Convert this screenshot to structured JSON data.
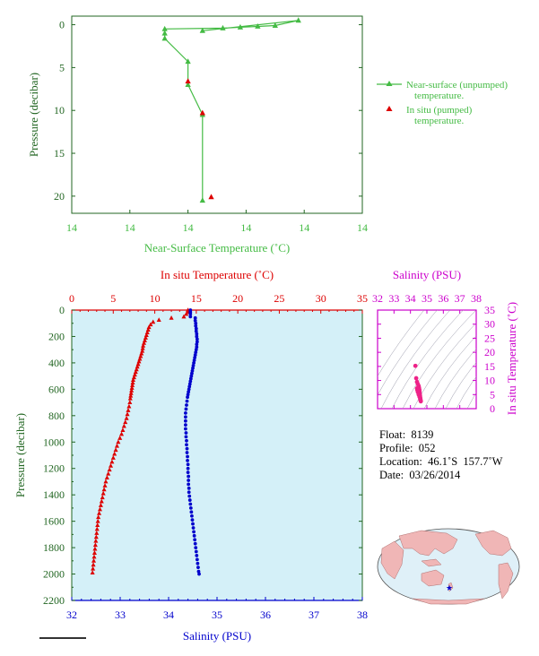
{
  "colors": {
    "green": "#44bb44",
    "red": "#dd0000",
    "blue": "#0000cc",
    "magenta": "#cc00cc",
    "plot_bg": "#d4f0f8",
    "axis_green": "#226622"
  },
  "top_chart": {
    "xlabel": "Near-Surface Temperature (˚C)",
    "ylabel": "Pressure (decibar)",
    "x_tick_labels": [
      "14",
      "14",
      "14",
      "14",
      "14",
      "14"
    ],
    "y_tick_labels": [
      "0",
      "5",
      "10",
      "15",
      "20"
    ],
    "legend": {
      "series1_line1": "Near-surface (unpumped)",
      "series1_line2": "temperature.",
      "series2_line1": "In situ (pumped)",
      "series2_line2": "temperature."
    }
  },
  "main_chart": {
    "top_axis_label": "In situ Temperature (˚C)",
    "bottom_axis_label": "Salinity (PSU)",
    "ylabel": "Pressure (decibar)",
    "top_tick_labels": [
      "0",
      "5",
      "10",
      "15",
      "20",
      "25",
      "30",
      "35"
    ],
    "bottom_tick_labels": [
      "32",
      "33",
      "34",
      "35",
      "36",
      "37",
      "38"
    ],
    "y_tick_labels": [
      "0",
      "200",
      "400",
      "600",
      "800",
      "1000",
      "1200",
      "1400",
      "1600",
      "1800",
      "2000",
      "2200"
    ]
  },
  "ts_chart": {
    "title": "Salinity (PSU)",
    "right_label": "In situ Temperature (˚C)",
    "x_tick_labels": [
      "32",
      "33",
      "34",
      "35",
      "36",
      "37",
      "38"
    ],
    "y_tick_labels": [
      "0",
      "5",
      "10",
      "15",
      "20",
      "25",
      "30",
      "35"
    ]
  },
  "info": {
    "float_label": "Float:",
    "float_value": "8139",
    "profile_label": "Profile:",
    "profile_value": "052",
    "location_label": "Location:",
    "location_value": "46.1˚S  157.7˚W",
    "date_label": "Date:",
    "date_value": "03/26/2014"
  },
  "chart_data": [
    {
      "type": "line",
      "title": "",
      "xlabel": "Near-Surface Temperature (˚C)",
      "ylabel": "Pressure (decibar)",
      "ylim": [
        22,
        -1
      ],
      "series": [
        {
          "name": "Near-surface (unpumped) temperature.",
          "points": [
            [
              13.65,
              0.7
            ],
            [
              13.98,
              -0.5
            ],
            [
              13.9,
              0.1
            ],
            [
              13.84,
              0.2
            ],
            [
              13.78,
              0.3
            ],
            [
              13.72,
              0.4
            ],
            [
              13.52,
              0.5
            ],
            [
              13.52,
              1.0
            ],
            [
              13.52,
              1.6
            ],
            [
              13.6,
              4.3
            ],
            [
              13.6,
              7.0
            ],
            [
              13.65,
              10.5
            ],
            [
              13.65,
              20.5
            ]
          ]
        },
        {
          "name": "In situ (pumped) temperature.",
          "points": [
            [
              13.6,
              6.6
            ],
            [
              13.65,
              10.3
            ],
            [
              13.68,
              20.1
            ]
          ]
        }
      ]
    },
    {
      "type": "scatter",
      "series": [
        {
          "name": "In situ Temperature",
          "unit": "˚C",
          "points": [
            [
              14.0,
              0
            ],
            [
              14.0,
              15
            ],
            [
              13.8,
              30
            ],
            [
              13.5,
              50
            ],
            [
              12.0,
              60
            ],
            [
              10.5,
              75
            ],
            [
              9.8,
              90
            ],
            [
              9.5,
              110
            ],
            [
              9.3,
              130
            ],
            [
              9.2,
              150
            ],
            [
              9.1,
              170
            ],
            [
              9.0,
              190
            ],
            [
              8.9,
              210
            ],
            [
              8.8,
              230
            ],
            [
              8.7,
              250
            ],
            [
              8.6,
              270
            ],
            [
              8.55,
              290
            ],
            [
              8.5,
              310
            ],
            [
              8.4,
              330
            ],
            [
              8.3,
              350
            ],
            [
              8.2,
              370
            ],
            [
              8.1,
              390
            ],
            [
              8.0,
              410
            ],
            [
              7.9,
              430
            ],
            [
              7.8,
              450
            ],
            [
              7.7,
              470
            ],
            [
              7.6,
              490
            ],
            [
              7.5,
              510
            ],
            [
              7.4,
              530
            ],
            [
              7.35,
              550
            ],
            [
              7.3,
              570
            ],
            [
              7.25,
              590
            ],
            [
              7.2,
              610
            ],
            [
              7.15,
              630
            ],
            [
              7.1,
              650
            ],
            [
              7.05,
              670
            ],
            [
              7.0,
              700
            ],
            [
              6.9,
              730
            ],
            [
              6.8,
              760
            ],
            [
              6.7,
              790
            ],
            [
              6.6,
              820
            ],
            [
              6.45,
              850
            ],
            [
              6.3,
              880
            ],
            [
              6.15,
              910
            ],
            [
              6.0,
              940
            ],
            [
              5.8,
              970
            ],
            [
              5.6,
              1000
            ],
            [
              5.45,
              1030
            ],
            [
              5.3,
              1060
            ],
            [
              5.15,
              1090
            ],
            [
              5.0,
              1120
            ],
            [
              4.85,
              1150
            ],
            [
              4.7,
              1180
            ],
            [
              4.55,
              1210
            ],
            [
              4.4,
              1240
            ],
            [
              4.25,
              1270
            ],
            [
              4.1,
              1300
            ],
            [
              4.0,
              1330
            ],
            [
              3.9,
              1360
            ],
            [
              3.8,
              1390
            ],
            [
              3.7,
              1420
            ],
            [
              3.6,
              1450
            ],
            [
              3.5,
              1480
            ],
            [
              3.4,
              1510
            ],
            [
              3.3,
              1540
            ],
            [
              3.2,
              1570
            ],
            [
              3.15,
              1600
            ],
            [
              3.1,
              1630
            ],
            [
              3.05,
              1660
            ],
            [
              3.0,
              1690
            ],
            [
              2.95,
              1720
            ],
            [
              2.9,
              1750
            ],
            [
              2.85,
              1780
            ],
            [
              2.8,
              1810
            ],
            [
              2.75,
              1840
            ],
            [
              2.7,
              1870
            ],
            [
              2.65,
              1900
            ],
            [
              2.6,
              1930
            ],
            [
              2.55,
              1960
            ],
            [
              2.5,
              1990
            ]
          ]
        },
        {
          "name": "Salinity",
          "unit": "PSU",
          "points": [
            [
              34.45,
              0
            ],
            [
              34.45,
              15
            ],
            [
              34.45,
              30
            ],
            [
              34.45,
              50
            ],
            [
              34.55,
              60
            ],
            [
              34.55,
              80
            ],
            [
              34.56,
              100
            ],
            [
              34.56,
              120
            ],
            [
              34.57,
              140
            ],
            [
              34.57,
              160
            ],
            [
              34.58,
              180
            ],
            [
              34.58,
              200
            ],
            [
              34.59,
              220
            ],
            [
              34.59,
              240
            ],
            [
              34.58,
              260
            ],
            [
              34.58,
              280
            ],
            [
              34.57,
              300
            ],
            [
              34.56,
              320
            ],
            [
              34.55,
              340
            ],
            [
              34.54,
              360
            ],
            [
              34.53,
              380
            ],
            [
              34.52,
              400
            ],
            [
              34.51,
              420
            ],
            [
              34.5,
              440
            ],
            [
              34.49,
              460
            ],
            [
              34.48,
              480
            ],
            [
              34.47,
              500
            ],
            [
              34.46,
              520
            ],
            [
              34.45,
              540
            ],
            [
              34.44,
              560
            ],
            [
              34.43,
              580
            ],
            [
              34.42,
              600
            ],
            [
              34.41,
              620
            ],
            [
              34.4,
              640
            ],
            [
              34.39,
              660
            ],
            [
              34.38,
              690
            ],
            [
              34.37,
              720
            ],
            [
              34.36,
              750
            ],
            [
              34.35,
              780
            ],
            [
              34.35,
              810
            ],
            [
              34.35,
              840
            ],
            [
              34.35,
              870
            ],
            [
              34.35,
              900
            ],
            [
              34.36,
              930
            ],
            [
              34.36,
              960
            ],
            [
              34.37,
              990
            ],
            [
              34.37,
              1020
            ],
            [
              34.38,
              1050
            ],
            [
              34.38,
              1080
            ],
            [
              34.39,
              1110
            ],
            [
              34.39,
              1140
            ],
            [
              34.4,
              1170
            ],
            [
              34.4,
              1200
            ],
            [
              34.4,
              1230
            ],
            [
              34.41,
              1260
            ],
            [
              34.41,
              1290
            ],
            [
              34.41,
              1320
            ],
            [
              34.42,
              1350
            ],
            [
              34.42,
              1380
            ],
            [
              34.43,
              1410
            ],
            [
              34.44,
              1440
            ],
            [
              34.45,
              1470
            ],
            [
              34.46,
              1500
            ],
            [
              34.47,
              1530
            ],
            [
              34.48,
              1560
            ],
            [
              34.49,
              1590
            ],
            [
              34.5,
              1620
            ],
            [
              34.51,
              1650
            ],
            [
              34.52,
              1680
            ],
            [
              34.53,
              1710
            ],
            [
              34.54,
              1740
            ],
            [
              34.55,
              1770
            ],
            [
              34.56,
              1800
            ],
            [
              34.57,
              1830
            ],
            [
              34.58,
              1860
            ],
            [
              34.59,
              1890
            ],
            [
              34.6,
              1920
            ],
            [
              34.61,
              1950
            ],
            [
              34.62,
              1980
            ],
            [
              34.63,
              2000
            ]
          ]
        }
      ],
      "top_axis_range": [
        0,
        35
      ],
      "bottom_axis_range": [
        32,
        38
      ],
      "ylim": [
        2200,
        0
      ]
    },
    {
      "type": "scatter",
      "xlim": [
        32,
        38
      ],
      "ylim": [
        0,
        35
      ],
      "series": [
        {
          "name": "T-S",
          "points": [
            [
              34.3,
              15.2
            ],
            [
              34.35,
              10.8
            ],
            [
              34.4,
              9.5
            ],
            [
              34.45,
              8.7
            ],
            [
              34.5,
              8.0
            ],
            [
              34.52,
              7.4
            ],
            [
              34.54,
              6.8
            ],
            [
              34.55,
              6.2
            ],
            [
              34.56,
              5.6
            ],
            [
              34.57,
              5.0
            ],
            [
              34.58,
              4.5
            ],
            [
              34.59,
              4.0
            ],
            [
              34.6,
              3.6
            ],
            [
              34.61,
              3.2
            ],
            [
              34.62,
              2.9
            ],
            [
              34.63,
              2.6
            ],
            [
              34.6,
              3.3
            ],
            [
              34.55,
              4.2
            ],
            [
              34.5,
              5.0
            ],
            [
              34.45,
              5.9
            ],
            [
              34.42,
              6.6
            ],
            [
              34.4,
              7.2
            ]
          ]
        }
      ]
    }
  ]
}
